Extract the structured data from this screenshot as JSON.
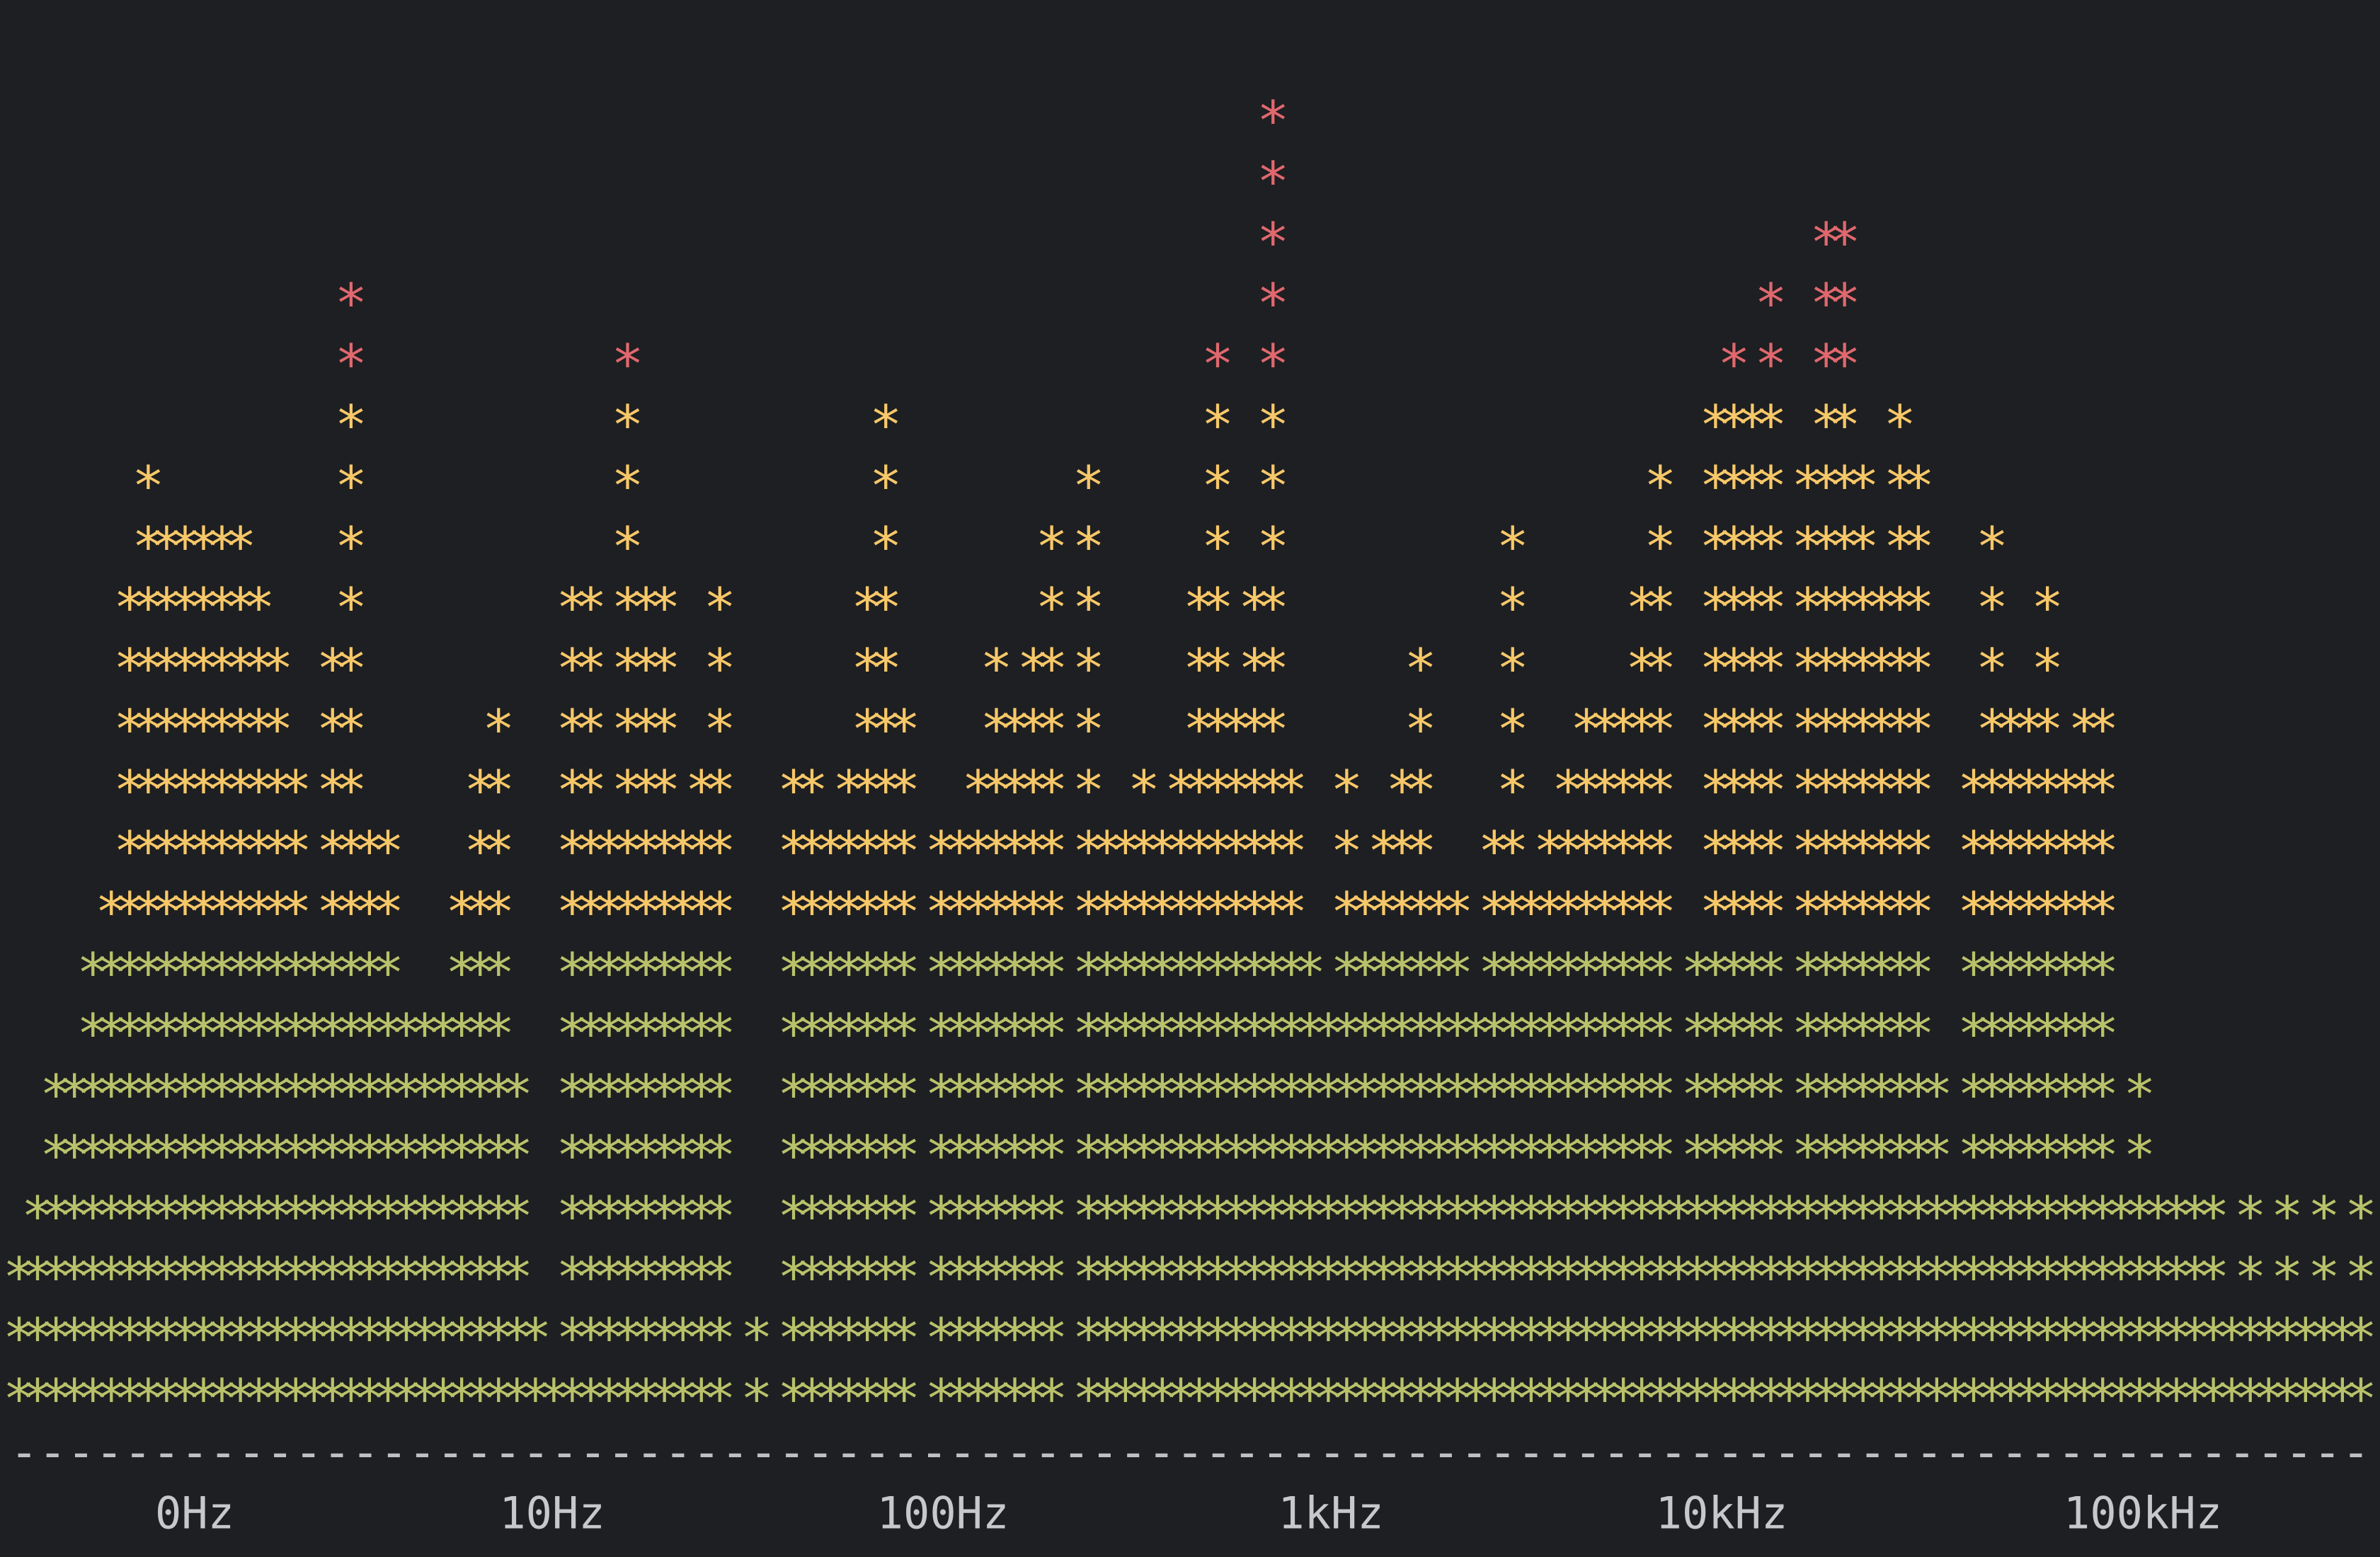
{
  "chart_data": {
    "type": "bar",
    "title": "",
    "xlabel": "",
    "ylabel": "",
    "x_scale": "log",
    "bar_glyph": "*",
    "baseline_glyph": "-",
    "tick_labels": [
      "0Hz",
      "10Hz",
      "100Hz",
      "1kHz",
      "10kHz",
      "100kHz"
    ],
    "ylim": [
      0,
      23
    ],
    "levels": [
      3,
      4,
      6,
      6,
      8,
      9,
      14,
      16,
      15,
      15,
      15,
      15,
      15,
      14,
      13,
      11,
      8,
      13,
      19,
      10,
      10,
      7,
      7,
      7,
      9,
      11,
      12,
      6,
      2,
      1,
      14,
      14,
      10,
      18,
      14,
      14,
      10,
      11,
      14,
      0,
      2,
      0,
      11,
      11,
      10,
      11,
      14,
      17,
      12,
      0,
      10,
      10,
      11,
      13,
      12,
      13,
      15,
      0,
      16,
      10,
      10,
      11,
      10,
      11,
      14,
      18,
      12,
      14,
      22,
      11,
      8,
      7,
      11,
      9,
      10,
      11,
      13,
      9,
      9,
      7,
      10,
      15,
      9,
      10,
      11,
      12,
      12,
      12,
      14,
      16,
      4,
      8,
      17,
      18,
      17,
      19,
      4,
      16,
      20,
      20,
      16,
      14,
      17,
      16,
      6,
      4,
      11,
      15,
      12,
      12,
      14,
      11,
      12,
      12,
      4,
      6,
      4,
      4,
      4,
      4,
      2,
      4,
      2,
      4,
      2,
      4,
      2,
      4
    ],
    "color_bands": [
      {
        "rows_from": 1,
        "rows_to": 8,
        "color": "#b9c26a"
      },
      {
        "rows_from": 9,
        "rows_to": 17,
        "color": "#f7c869"
      },
      {
        "rows_from": 18,
        "rows_to": 23,
        "color": "#e0686e"
      }
    ]
  }
}
